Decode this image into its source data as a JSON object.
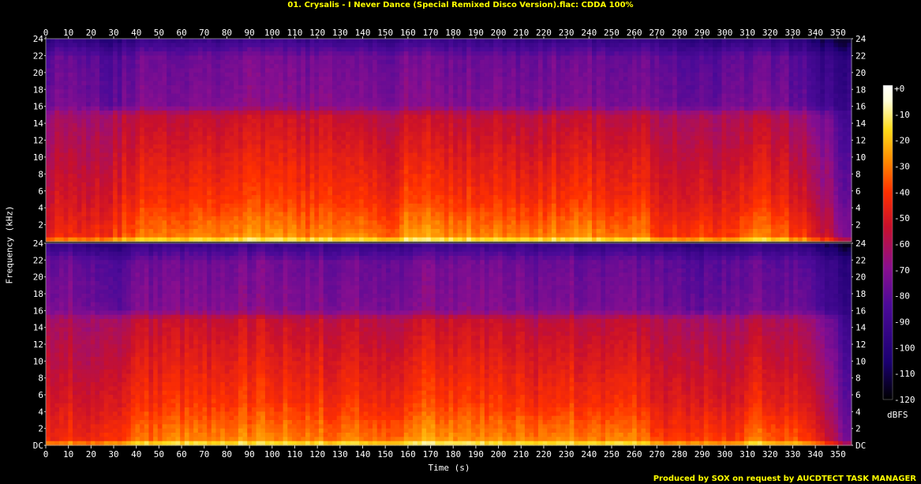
{
  "header": {
    "title": "01. Crysalis - I Never Dance (Special Remixed Disco Version).flac: CDDA 100%"
  },
  "footer": {
    "credit": "Produced by SOX on request by AUCDTECT TASK MANAGER"
  },
  "colors": {
    "background": "#000000",
    "title": "#ffff00",
    "axis": "#ffffff",
    "palette": [
      "#000000",
      "#1b0070",
      "#4c0a98",
      "#8a0f8f",
      "#c8102c",
      "#ff3000",
      "#ff8a00",
      "#ffdc1a",
      "#ffffd8",
      "#ffffff"
    ]
  },
  "chart_data": {
    "type": "heatmap",
    "title": "01. Crysalis - I Never Dance (Special Remixed Disco Version).flac: CDDA 100%",
    "xlabel": "Time (s)",
    "ylabel": "Frequency (kHz)",
    "xlim": [
      0,
      356
    ],
    "ylim": [
      0,
      24
    ],
    "x_ticks": [
      "0",
      "10",
      "20",
      "30",
      "40",
      "50",
      "60",
      "70",
      "80",
      "90",
      "100",
      "110",
      "120",
      "130",
      "140",
      "150",
      "160",
      "170",
      "180",
      "190",
      "200",
      "210",
      "220",
      "230",
      "240",
      "250",
      "260",
      "270",
      "280",
      "290",
      "300",
      "310",
      "320",
      "330",
      "340",
      "350"
    ],
    "y_ticks": [
      "DC",
      "2",
      "4",
      "6",
      "8",
      "10",
      "12",
      "14",
      "16",
      "18",
      "20",
      "22",
      "24"
    ],
    "channels": 2,
    "colorbar": {
      "label": "dBFS",
      "range": [
        -120,
        0
      ],
      "ticks": [
        "+0",
        "-10",
        "-20",
        "-30",
        "-40",
        "-50",
        "-60",
        "-70",
        "-80",
        "-90",
        "-100",
        "-110",
        "-120"
      ]
    },
    "approx_level_dbfs": {
      "time_s": [
        0,
        10,
        20,
        30,
        40,
        60,
        80,
        100,
        120,
        140,
        155,
        160,
        170,
        180,
        200,
        215,
        230,
        250,
        265,
        270,
        290,
        305,
        310,
        320,
        335,
        345,
        355
      ],
      "low_band_0_5khz": [
        -45,
        -42,
        -43,
        -40,
        -32,
        -30,
        -28,
        -28,
        -30,
        -30,
        -32,
        -25,
        -25,
        -27,
        -30,
        -30,
        -28,
        -29,
        -30,
        -40,
        -38,
        -42,
        -30,
        -32,
        -40,
        -55,
        -75
      ],
      "mid_band_5_15khz": [
        -58,
        -56,
        -57,
        -55,
        -50,
        -49,
        -48,
        -48,
        -49,
        -50,
        -52,
        -48,
        -48,
        -49,
        -50,
        -52,
        -50,
        -50,
        -51,
        -55,
        -55,
        -58,
        -52,
        -53,
        -58,
        -70,
        -85
      ],
      "high_band_15_22khz": [
        -75,
        -72,
        -74,
        -80,
        -72,
        -72,
        -70,
        -70,
        -71,
        -72,
        -72,
        -70,
        -70,
        -71,
        -72,
        -73,
        -72,
        -72,
        -73,
        -74,
        -78,
        -76,
        -74,
        -74,
        -78,
        -90,
        -95
      ]
    }
  }
}
